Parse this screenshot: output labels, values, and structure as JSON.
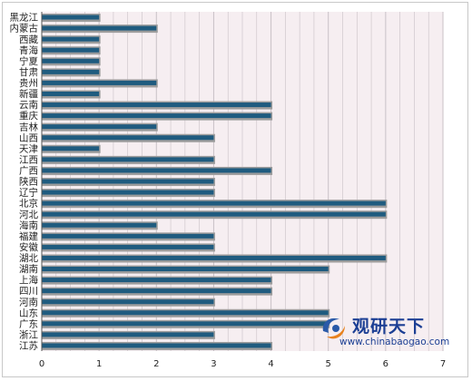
{
  "chart_data": {
    "type": "bar",
    "orientation": "horizontal",
    "categories": [
      "黑龙江",
      "内蒙古",
      "西藏",
      "青海",
      "宁夏",
      "甘肃",
      "贵州",
      "新疆",
      "云南",
      "重庆",
      "吉林",
      "山西",
      "天津",
      "江西",
      "广西",
      "陕西",
      "辽宁",
      "北京",
      "河北",
      "海南",
      "福建",
      "安徽",
      "湖北",
      "湖南",
      "上海",
      "四川",
      "河南",
      "山东",
      "广东",
      "浙江",
      "江苏"
    ],
    "values": [
      1,
      2,
      1,
      1,
      1,
      1,
      2,
      1,
      4,
      4,
      2,
      3,
      1,
      3,
      4,
      3,
      3,
      6,
      6,
      2,
      3,
      3,
      6,
      5,
      4,
      4,
      3,
      5,
      5,
      3,
      4
    ],
    "xlim": [
      0,
      7
    ],
    "xticks": [
      "0",
      "1",
      "2",
      "3",
      "4",
      "5",
      "6",
      "7"
    ],
    "grid": "vertical",
    "legend": "none",
    "colors": {
      "bar": "#1f5b7f",
      "bar_shadow": "#9c9c9c",
      "plot_bg": "#f6eef1",
      "grid": "#c9c1c6",
      "axis": "#555555"
    }
  },
  "watermark": {
    "title": "观研天下",
    "url": "www.chinabaogao.com",
    "logo_icon": "chinabaogao-logo-icon",
    "colors": {
      "text": "#1c3f94",
      "logo_blue": "#2a5aa8",
      "logo_orange": "#e8821e"
    }
  }
}
